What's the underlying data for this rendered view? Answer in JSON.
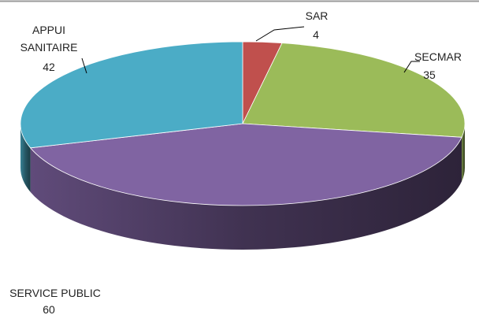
{
  "chart_data": {
    "type": "pie3d",
    "categories": [
      "SAR",
      "SECMAR",
      "SERVICE PUBLIC",
      "APPUI SANITAIRE"
    ],
    "values": [
      4,
      35,
      60,
      42
    ],
    "colors": [
      "#c0504d",
      "#9bbb59",
      "#8064a2",
      "#4bacc6"
    ]
  }
}
